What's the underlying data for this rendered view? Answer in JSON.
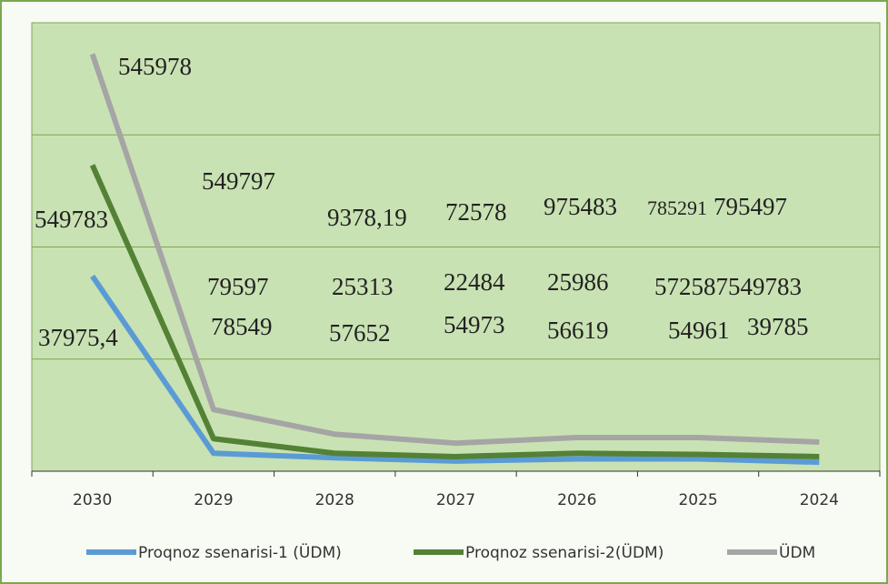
{
  "chart_data": {
    "type": "line",
    "categories": [
      "2030",
      "2029",
      "2028",
      "2027",
      "2026",
      "2025",
      "2024"
    ],
    "series": [
      {
        "name": "Proqnoz ssenarisi-1 (ÜDM)",
        "color": "#5b9bd5",
        "values": [
          1.74,
          0.16,
          0.12,
          0.09,
          0.11,
          0.11,
          0.08
        ]
      },
      {
        "name": "Proqnoz ssenarisi-2(ÜDM)",
        "color": "#538135",
        "values": [
          2.73,
          0.29,
          0.16,
          0.13,
          0.16,
          0.15,
          0.13
        ]
      },
      {
        "name": "ÜDM",
        "color": "#a5a5a5",
        "values": [
          3.72,
          0.55,
          0.33,
          0.25,
          0.3,
          0.3,
          0.26
        ]
      }
    ],
    "annotations": [
      "545978",
      "549797",
      "549783",
      "9378,19",
      "72578",
      "975483",
      "785291",
      "795497",
      "79597",
      "25313",
      "22484",
      "25986",
      "572587549783",
      "37975,4",
      "78549",
      "57652",
      "54973",
      "56619",
      "54961",
      "39785"
    ],
    "ylim": [
      0,
      4
    ],
    "yticks": [
      0,
      1,
      2,
      3,
      4
    ],
    "grid": true,
    "legend": "bottom"
  }
}
